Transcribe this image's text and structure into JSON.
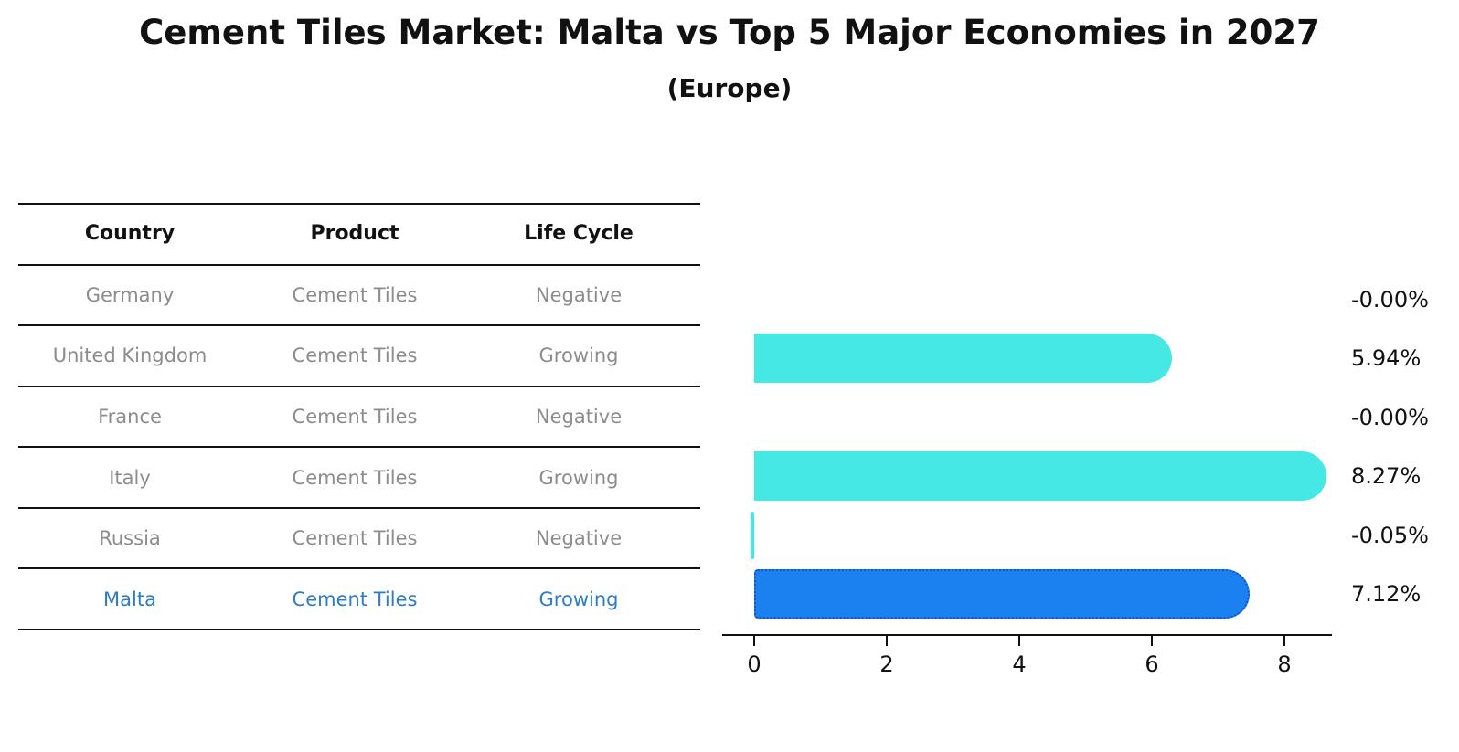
{
  "header": {
    "title": "Cement Tiles Market: Malta vs Top 5 Major Economies in 2027",
    "subtitle": "(Europe)"
  },
  "table": {
    "columns": [
      "Country",
      "Product",
      "Life Cycle"
    ],
    "rows": [
      {
        "country": "Germany",
        "product": "Cement Tiles",
        "life_cycle": "Negative",
        "highlight": false
      },
      {
        "country": "United Kingdom",
        "product": "Cement Tiles",
        "life_cycle": "Growing",
        "highlight": false
      },
      {
        "country": "France",
        "product": "Cement Tiles",
        "life_cycle": "Negative",
        "highlight": false
      },
      {
        "country": "Italy",
        "product": "Cement Tiles",
        "life_cycle": "Growing",
        "highlight": false
      },
      {
        "country": "Russia",
        "product": "Cement Tiles",
        "life_cycle": "Negative",
        "highlight": false
      },
      {
        "country": "Malta",
        "product": "Cement Tiles",
        "life_cycle": "Growing",
        "highlight": true
      }
    ]
  },
  "chart_data": {
    "type": "bar",
    "orientation": "horizontal",
    "title": "Cement Tiles Market: Malta vs Top 5 Major Economies in 2027 (Europe)",
    "categories": [
      "Germany",
      "United Kingdom",
      "France",
      "Italy",
      "Russia",
      "Malta"
    ],
    "values": [
      -0.0,
      5.94,
      -0.0,
      8.27,
      -0.05,
      7.12
    ],
    "labels": [
      "-0.00%",
      "5.94%",
      "-0.00%",
      "8.27%",
      "-0.05%",
      "7.12%"
    ],
    "units": "%",
    "x_ticks": [
      0,
      2,
      4,
      6,
      8
    ],
    "xlim": [
      -0.5,
      8.7
    ],
    "grid": false,
    "legend": "none",
    "highlight_index": 5,
    "colors": {
      "bar": "#45E8E4",
      "highlight_bar": "#1B80F0",
      "highlight_border": "#1055C8",
      "row_text": "#8C8C8C",
      "highlight_text": "#2B7CC9",
      "axis_text": "#111111"
    }
  }
}
